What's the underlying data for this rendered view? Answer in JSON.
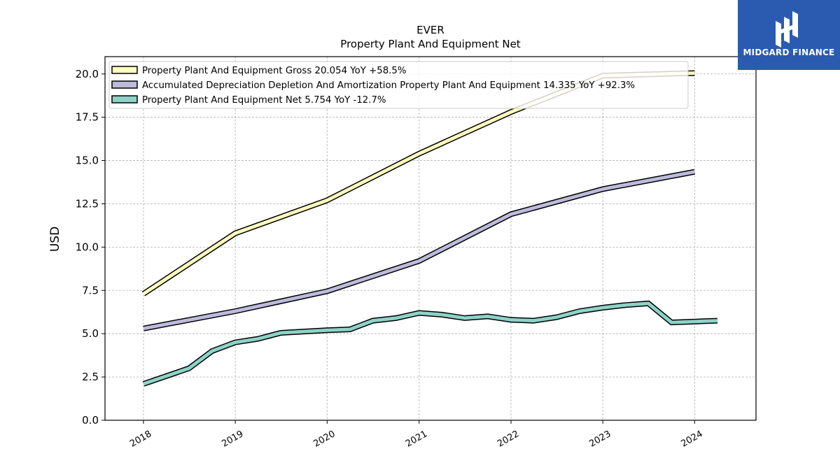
{
  "brand": {
    "name": "MIDGARD FINANCE",
    "bg_color": "#2a5bb0"
  },
  "chart_data": {
    "type": "line",
    "title": "EVER",
    "subtitle": "Property Plant And Equipment Net",
    "xlabel": "",
    "ylabel": "USD",
    "ylim": [
      0,
      21
    ],
    "yticks": [
      "0.0",
      "2.5",
      "5.0",
      "7.5",
      "10.0",
      "12.5",
      "15.0",
      "17.5",
      "20.0"
    ],
    "xticks": [
      "2018",
      "2019",
      "2020",
      "2021",
      "2022",
      "2023",
      "2024"
    ],
    "grid": true,
    "legend_position": "top-left",
    "series": [
      {
        "name": "Property Plant And Equipment Gross  20.054 YoY +58.5%",
        "color": "#ffffbf",
        "points": [
          [
            "2018-01-01",
            7.3
          ],
          [
            "2019-01-01",
            10.8
          ],
          [
            "2020-01-01",
            12.7
          ],
          [
            "2021-01-01",
            15.4
          ],
          [
            "2022-01-01",
            17.8
          ],
          [
            "2023-01-01",
            19.9
          ],
          [
            "2024-01-01",
            20.05
          ]
        ]
      },
      {
        "name": "Accumulated Depreciation Depletion And Amortization Property Plant And Equipment  14.335 YoY +92.3%",
        "color": "#bebadc",
        "points": [
          [
            "2018-01-01",
            5.3
          ],
          [
            "2019-01-01",
            6.3
          ],
          [
            "2020-01-01",
            7.45
          ],
          [
            "2021-01-01",
            9.2
          ],
          [
            "2022-01-01",
            11.9
          ],
          [
            "2023-01-01",
            13.35
          ],
          [
            "2024-01-01",
            14.35
          ]
        ]
      },
      {
        "name": "Property Plant And Equipment Net  5.754 YoY -12.7%",
        "color": "#8dd3c7",
        "points": [
          [
            "2018-01-01",
            2.1
          ],
          [
            "2018-07-01",
            3.0
          ],
          [
            "2018-10-01",
            4.0
          ],
          [
            "2019-01-01",
            4.5
          ],
          [
            "2019-04-01",
            4.7
          ],
          [
            "2019-07-01",
            5.05
          ],
          [
            "2020-01-01",
            5.2
          ],
          [
            "2020-04-01",
            5.25
          ],
          [
            "2020-07-01",
            5.75
          ],
          [
            "2020-10-01",
            5.9
          ],
          [
            "2021-01-01",
            6.2
          ],
          [
            "2021-04-01",
            6.1
          ],
          [
            "2021-07-01",
            5.9
          ],
          [
            "2021-10-01",
            6.0
          ],
          [
            "2022-01-01",
            5.8
          ],
          [
            "2022-04-01",
            5.75
          ],
          [
            "2022-07-01",
            5.95
          ],
          [
            "2022-10-01",
            6.3
          ],
          [
            "2023-01-01",
            6.5
          ],
          [
            "2023-04-01",
            6.65
          ],
          [
            "2023-07-01",
            6.75
          ],
          [
            "2023-10-01",
            5.65
          ],
          [
            "2024-01-01",
            5.7
          ],
          [
            "2024-04-01",
            5.75
          ]
        ]
      }
    ]
  }
}
